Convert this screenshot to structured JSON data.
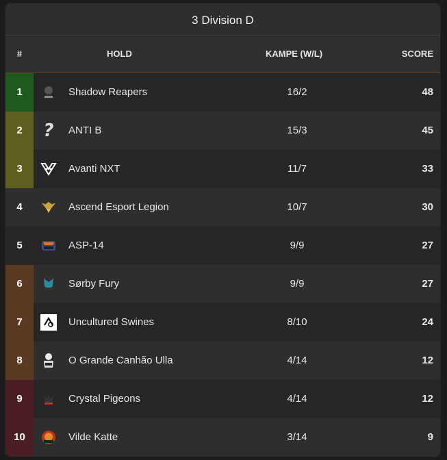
{
  "title": "3 Division D",
  "headers": {
    "rank": "#",
    "team": "HOLD",
    "games": "KAMPE (W/L)",
    "score": "SCORE"
  },
  "rows": [
    {
      "rank": "1",
      "team": "Shadow Reapers",
      "games": "16/2",
      "score": "48",
      "rank_color": "#1f5a1f",
      "logo_icon": "reaper-logo-icon"
    },
    {
      "rank": "2",
      "team": "ANTI B",
      "games": "15/3",
      "score": "45",
      "rank_color": "#5e5e1e",
      "logo_icon": "question-mark-icon"
    },
    {
      "rank": "3",
      "team": "Avanti NXT",
      "games": "11/7",
      "score": "33",
      "rank_color": "#5e5e1e",
      "logo_icon": "avanti-logo-icon"
    },
    {
      "rank": "4",
      "team": "Ascend Esport Legion",
      "games": "10/7",
      "score": "30",
      "rank_color": "",
      "logo_icon": "ascend-wings-icon"
    },
    {
      "rank": "5",
      "team": "ASP-14",
      "games": "9/9",
      "score": "27",
      "rank_color": "",
      "logo_icon": "asp14-logo-icon"
    },
    {
      "rank": "6",
      "team": "Sørby Fury",
      "games": "9/9",
      "score": "27",
      "rank_color": "#5a3a22",
      "logo_icon": "sorby-fury-logo-icon"
    },
    {
      "rank": "7",
      "team": "Uncultured Swines",
      "games": "8/10",
      "score": "24",
      "rank_color": "#5a3a22",
      "logo_icon": "swines-logo-icon"
    },
    {
      "rank": "8",
      "team": "O Grande Canhão Ulla",
      "games": "4/14",
      "score": "12",
      "rank_color": "#5a3a22",
      "logo_icon": "ulla-logo-icon"
    },
    {
      "rank": "9",
      "team": "Crystal Pigeons",
      "games": "4/14",
      "score": "12",
      "rank_color": "#4a1e22",
      "logo_icon": "crystal-pigeons-logo-icon"
    },
    {
      "rank": "10",
      "team": "Vilde Katte",
      "games": "3/14",
      "score": "9",
      "rank_color": "#4a1e22",
      "logo_icon": "vilde-katte-logo-icon"
    }
  ]
}
